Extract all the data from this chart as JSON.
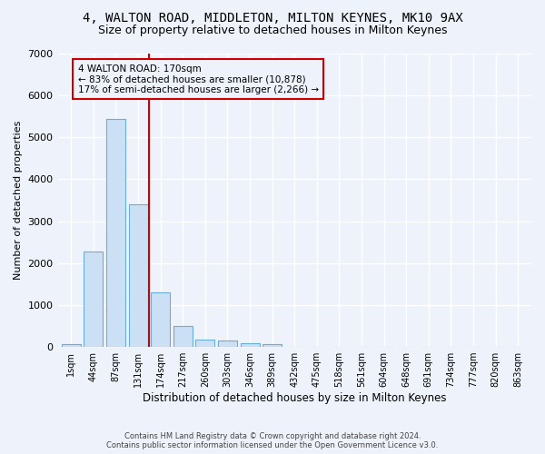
{
  "title1": "4, WALTON ROAD, MIDDLETON, MILTON KEYNES, MK10 9AX",
  "title2": "Size of property relative to detached houses in Milton Keynes",
  "xlabel": "Distribution of detached houses by size in Milton Keynes",
  "ylabel": "Number of detached properties",
  "footnote1": "Contains HM Land Registry data © Crown copyright and database right 2024.",
  "footnote2": "Contains public sector information licensed under the Open Government Licence v3.0.",
  "bar_labels": [
    "1sqm",
    "44sqm",
    "87sqm",
    "131sqm",
    "174sqm",
    "217sqm",
    "260sqm",
    "303sqm",
    "346sqm",
    "389sqm",
    "432sqm",
    "475sqm",
    "518sqm",
    "561sqm",
    "604sqm",
    "648sqm",
    "691sqm",
    "734sqm",
    "777sqm",
    "820sqm",
    "863sqm"
  ],
  "bar_values": [
    70,
    2280,
    5450,
    3400,
    1310,
    490,
    180,
    150,
    90,
    60,
    0,
    0,
    0,
    0,
    0,
    0,
    0,
    0,
    0,
    0,
    0
  ],
  "bar_color": "#cce0f5",
  "bar_edgecolor": "#6aaed6",
  "property_line_x": 3.5,
  "property_line_color": "#cc0000",
  "annotation_text": "4 WALTON ROAD: 170sqm\n← 83% of detached houses are smaller (10,878)\n17% of semi-detached houses are larger (2,266) →",
  "ylim": [
    0,
    7000
  ],
  "yticks": [
    0,
    1000,
    2000,
    3000,
    4000,
    5000,
    6000,
    7000
  ],
  "bg_color": "#eef2fa",
  "grid_color": "#ffffff",
  "title1_fontsize": 10,
  "title2_fontsize": 9
}
